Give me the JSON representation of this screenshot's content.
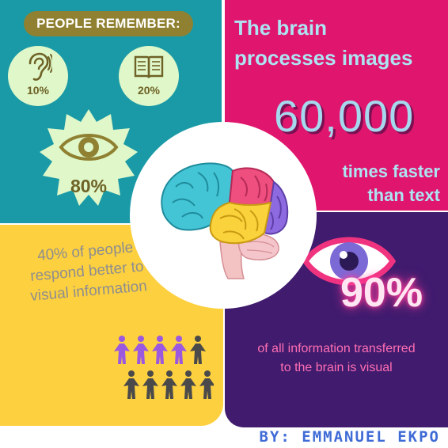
{
  "people_remember": {
    "heading": "PEOPLE REMEMBER:",
    "hearing_pct": "10%",
    "reading_pct": "20%",
    "seeing_pct": "80%"
  },
  "brain_speed": {
    "line1": "The brain",
    "line2": "processes images",
    "big_number": "60,000",
    "line3": "times faster",
    "line4": "than text"
  },
  "visual_response": {
    "text": "40% of people respond better to visual information",
    "people_total": 10,
    "people_highlighted": 4
  },
  "visual_info": {
    "big_number": "90%",
    "line1": "of all information transferred",
    "line2": "to the brain is visual"
  },
  "credit": "BY: EMMANUEL EKPO",
  "colors": {
    "teal": "#1a9aa6",
    "magenta": "#e0166e",
    "yellow": "#fdd03f",
    "purple": "#401b6e",
    "olive": "#8f8131",
    "highlight_person": "#9b59e0",
    "dark_person": "#4a4a4a"
  }
}
